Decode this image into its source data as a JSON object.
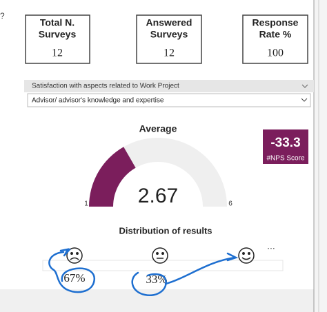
{
  "help_mark": "?",
  "cards": [
    {
      "title_lines": [
        "Total N.",
        "Surveys"
      ],
      "value": "12"
    },
    {
      "title_lines": [
        "Answered",
        "Surveys"
      ],
      "value": "12"
    },
    {
      "title_lines": [
        "Response",
        "Rate %"
      ],
      "value": "100"
    }
  ],
  "filter": {
    "label": "Satisfaction with aspects related to Work Project",
    "selected": "Advisor/ advisor's knowledge and expertise"
  },
  "gauge": {
    "title": "Average",
    "value": 2.67,
    "min": 1,
    "max": 6,
    "color": "#7b1e5c"
  },
  "nps": {
    "value": -33.3,
    "label": "#NPS Score"
  },
  "distribution": {
    "title": "Distribution of results",
    "labels": [
      "67%",
      "33%"
    ],
    "more": "..."
  }
}
